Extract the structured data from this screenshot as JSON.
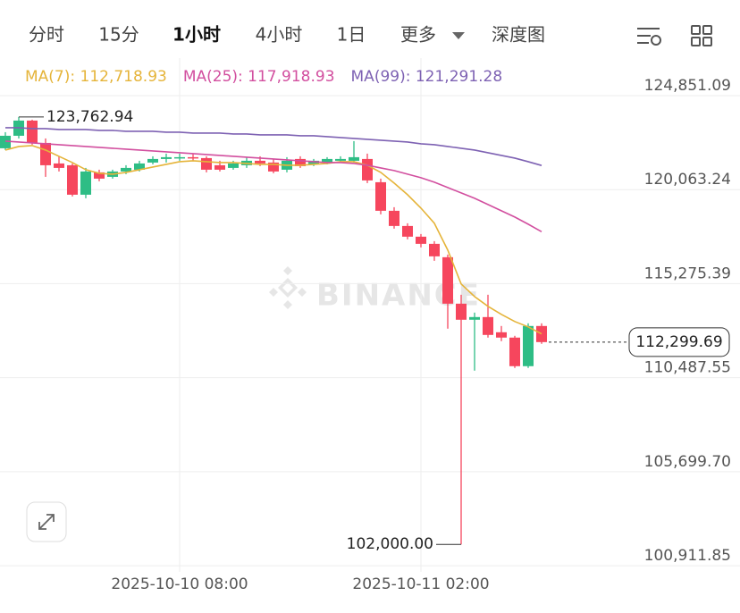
{
  "tabs": [
    "分时",
    "15分",
    "1小时",
    "4小时",
    "1日",
    "更多",
    "深度图"
  ],
  "active_tab": 2,
  "chart_data": {
    "type": "candlestick",
    "watermark": "BINANCE",
    "categories": [
      null,
      null,
      null,
      null,
      null,
      null,
      null,
      null,
      null,
      null,
      null,
      null,
      null,
      "2025-10-10 08:00",
      null,
      null,
      null,
      null,
      null,
      null,
      null,
      null,
      null,
      null,
      null,
      null,
      null,
      null,
      null,
      null,
      null,
      "2025-10-11 02:00",
      null,
      null,
      null,
      null,
      null,
      null,
      null,
      null,
      null
    ],
    "open": [
      122168,
      122805,
      123578,
      122441,
      121395,
      121304,
      119804,
      120941,
      120713,
      120986,
      121077,
      121441,
      121623,
      121668,
      121714,
      121668,
      121304,
      121168,
      121304,
      121532,
      121441,
      121077,
      121623,
      121350,
      121441,
      121532,
      121532,
      121623,
      120440,
      118985,
      118212,
      117667,
      117303,
      116621,
      114256,
      113438,
      113574,
      112801,
      112529,
      111074,
      113120
    ],
    "high": [
      122987,
      123762.94,
      123623,
      122668,
      121759,
      121395,
      121168,
      121077,
      121077,
      121304,
      121532,
      121759,
      121895,
      121895,
      121895,
      121759,
      121532,
      121532,
      121714,
      121759,
      121623,
      121714,
      121759,
      121623,
      121714,
      121759,
      122532,
      121895,
      120622,
      119167,
      118349,
      117803,
      117439,
      116757,
      114711,
      113802,
      114711,
      113120,
      112620,
      113256,
      113256
    ],
    "low": [
      122077,
      122668,
      122350,
      120713,
      120986,
      119713,
      119622,
      120486,
      120622,
      120850,
      120986,
      121350,
      121441,
      121532,
      121532,
      120941,
      120986,
      121077,
      121168,
      121259,
      120895,
      120941,
      121168,
      121259,
      121350,
      121441,
      121441,
      120395,
      118803,
      118076,
      117530,
      117121,
      116439,
      112983,
      102000,
      110846,
      112529,
      112347,
      110983,
      110983,
      112210
    ],
    "close": [
      122805,
      123578,
      122441,
      121304,
      121168,
      119804,
      120986,
      120622,
      120986,
      121168,
      121395,
      121623,
      121714,
      121714,
      121668,
      121077,
      121077,
      121395,
      121532,
      121395,
      120986,
      121532,
      121259,
      121532,
      121623,
      121623,
      121714,
      120531,
      118985,
      118212,
      117667,
      117303,
      116666,
      114256,
      113438,
      113574,
      112665,
      112529,
      111074,
      113120,
      112299.69
    ],
    "up_color": "#2ebd85",
    "down_color": "#f6465d",
    "series": [
      {
        "name": "MA(7): 112,718.93",
        "color": "#e5b43a",
        "values": [
          122077,
          122259,
          122305,
          122077,
          121759,
          121441,
          121077,
          120895,
          120850,
          120941,
          121077,
          121213,
          121350,
          121486,
          121532,
          121486,
          121441,
          121441,
          121395,
          121350,
          121350,
          121304,
          121304,
          121350,
          121395,
          121486,
          121486,
          121304,
          120941,
          120395,
          119804,
          119122,
          118349,
          116985,
          115257,
          114620,
          114120,
          113711,
          113347,
          113074,
          112718.93
        ]
      },
      {
        "name": "MA(25): 117,918.93",
        "color": "#d24f9f",
        "values": [
          122532,
          122487,
          122441,
          122396,
          122350,
          122305,
          122259,
          122214,
          122168,
          122123,
          122077,
          122032,
          121986,
          121941,
          121895,
          121850,
          121805,
          121759,
          121714,
          121668,
          121623,
          121577,
          121532,
          121486,
          121441,
          121441,
          121395,
          121304,
          121168,
          121032,
          120850,
          120668,
          120440,
          120168,
          119895,
          119622,
          119304,
          118985,
          118667,
          118303,
          117918.93
        ]
      },
      {
        "name": "MA(99): 121,291.28",
        "color": "#7e62b3",
        "values": [
          123214,
          123214,
          123169,
          123169,
          123123,
          123123,
          123123,
          123078,
          123078,
          123032,
          123032,
          123032,
          122987,
          122987,
          122941,
          122941,
          122941,
          122896,
          122896,
          122850,
          122850,
          122850,
          122805,
          122805,
          122759,
          122714,
          122668,
          122623,
          122577,
          122532,
          122487,
          122396,
          122350,
          122259,
          122168,
          122077,
          121941,
          121805,
          121668,
          121486,
          121291.28
        ]
      }
    ],
    "ylim": [
      100600,
      125850
    ],
    "yticks": [
      {
        "value": 124851.09,
        "label": "124,851.09"
      },
      {
        "value": 120063.24,
        "label": "120,063.24"
      },
      {
        "value": 115275.39,
        "label": "115,275.39"
      },
      {
        "value": 110487.55,
        "label": "110,487.55"
      },
      {
        "value": 105699.7,
        "label": "105,699.70"
      },
      {
        "value": 100911.85,
        "label": "100,911.85"
      }
    ],
    "grid": true,
    "annotations": [
      {
        "value": 123762.94,
        "label": "123,762.94"
      },
      {
        "value": 102000.0,
        "label": "102,000.00"
      }
    ],
    "last_price": {
      "value": 112299.69,
      "label": "112,299.69"
    }
  }
}
